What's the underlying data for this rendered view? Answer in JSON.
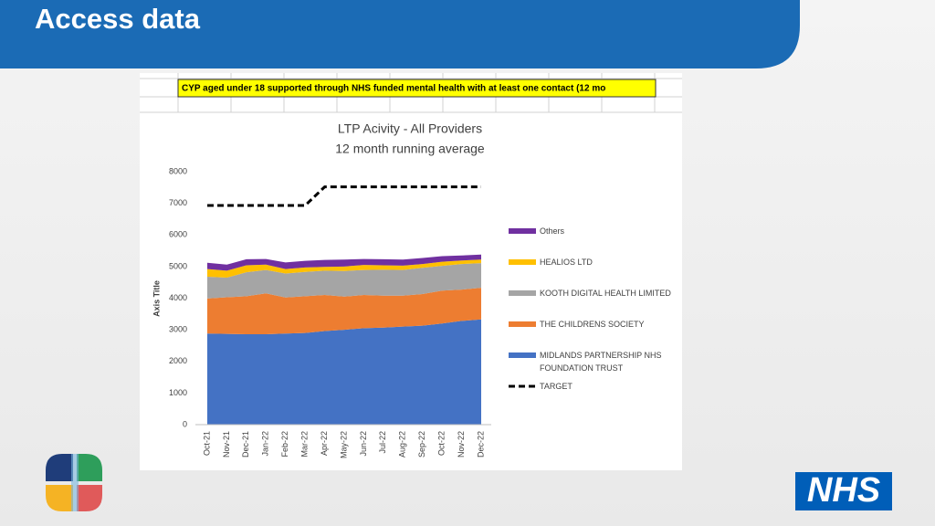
{
  "header": {
    "title": "Access data"
  },
  "sheet": {
    "cell_text": "CYP aged under 18 supported through NHS funded mental health with at least one contact (12 mo"
  },
  "logo": {
    "text": "NHS"
  },
  "chart_data": {
    "type": "area",
    "stacked": true,
    "title": "LTP Acivity - All Providers",
    "subtitle": "12 month running average",
    "y_label": "Axis Title",
    "categories": [
      "Oct-21",
      "Nov-21",
      "Dec-21",
      "Jan-22",
      "Feb-22",
      "Mar-22",
      "Apr-22",
      "May-22",
      "Jun-22",
      "Jul-22",
      "Aug-22",
      "Sep-22",
      "Oct-22",
      "Nov-22",
      "Dec-22"
    ],
    "series": [
      {
        "name": "MIDLANDS PARTNERSHIP NHS FOUNDATION TRUST",
        "color": "#4472c4",
        "values": [
          2880,
          2870,
          2860,
          2860,
          2880,
          2900,
          2960,
          3000,
          3050,
          3070,
          3100,
          3130,
          3200,
          3280,
          3330
        ]
      },
      {
        "name": "THE CHILDRENS SOCIETY",
        "color": "#ed7d31",
        "values": [
          1110,
          1160,
          1200,
          1290,
          1140,
          1160,
          1140,
          1050,
          1050,
          1010,
          980,
          1000,
          1040,
          990,
          1000
        ]
      },
      {
        "name": "KOOTH DIGITAL HEALTH LIMITED",
        "color": "#a5a5a5",
        "values": [
          690,
          620,
          760,
          740,
          760,
          770,
          770,
          810,
          790,
          820,
          810,
          830,
          780,
          810,
          780
        ]
      },
      {
        "name": "HEALIOS LTD",
        "color": "#ffc000",
        "values": [
          240,
          220,
          220,
          170,
          140,
          140,
          120,
          140,
          160,
          140,
          140,
          120,
          130,
          110,
          110
        ]
      },
      {
        "name": "Others",
        "color": "#7030a0",
        "values": [
          200,
          190,
          190,
          180,
          210,
          210,
          220,
          220,
          190,
          190,
          190,
          190,
          180,
          160,
          160
        ]
      },
      {
        "name": "TARGET",
        "color": "#000000",
        "kind": "line",
        "dashed": true,
        "values": [
          6930,
          6930,
          6930,
          6930,
          6930,
          6930,
          7520,
          7520,
          7520,
          7520,
          7520,
          7520,
          7520,
          7520,
          7520
        ]
      }
    ],
    "ylim": [
      0,
      8000
    ],
    "yticks": [
      0,
      1000,
      2000,
      3000,
      4000,
      5000,
      6000,
      7000,
      8000
    ],
    "grid": false,
    "legend": "right"
  }
}
